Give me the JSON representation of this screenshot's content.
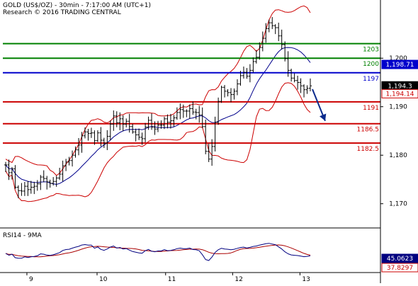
{
  "header": {
    "line1": "GOLD (US$/OZ) - 30min - 7:17:00 AM (UTC+1)",
    "line2": "Research © 2016 TRADING CENTRAL"
  },
  "rsi_label": "RSI14 - 9MA",
  "colors": {
    "candle": "#000000",
    "bollinger": "#cc0000",
    "moving_average": "#00008b",
    "support": "#cc0000",
    "resistance": "#008000",
    "pivot": "#0000cc",
    "arrow": "#0a2a8c",
    "rsi": "#000080",
    "rsi_ma": "#aa0000"
  },
  "chart_data": [
    {
      "type": "candlestick",
      "title": "GOLD (US$/OZ) - 30min - 7:17:00 AM (UTC+1)",
      "ylim": [
        1165,
        1212
      ],
      "y_ticks": [
        "1,170",
        "1,180",
        "1,190",
        "1,200"
      ],
      "x_ticks": [
        "9",
        "10",
        "11",
        "12",
        "13"
      ],
      "grid": false,
      "levels": [
        {
          "value": 1203,
          "label": "1203",
          "role": "resistance"
        },
        {
          "value": 1200,
          "label": "1200",
          "role": "resistance"
        },
        {
          "value": 1197,
          "label": "1197",
          "role": "pivot"
        },
        {
          "value": 1191,
          "label": "1191",
          "role": "support"
        },
        {
          "value": 1186.5,
          "label": "1186.5",
          "role": "support"
        },
        {
          "value": 1182.5,
          "label": "1182.5",
          "role": "support"
        }
      ],
      "price_tags": [
        {
          "value": 1198.71,
          "label": "1,198.71",
          "style": "blue"
        },
        {
          "value": 1194.3,
          "label": "1,194.3",
          "style": "black"
        },
        {
          "value": 1194.14,
          "label": "1,194.14",
          "style": "red"
        }
      ],
      "forecast_arrow": {
        "from": 1193.6,
        "to": 1186.5
      },
      "close": [
        1178.0,
        1176.4,
        1177.2,
        1173.4,
        1172.7,
        1172.6,
        1173.6,
        1172.9,
        1173.4,
        1173.6,
        1174.1,
        1175.5,
        1175.2,
        1174.5,
        1174.2,
        1174.6,
        1175.3,
        1176.1,
        1177.8,
        1178.6,
        1178.9,
        1180.0,
        1181.1,
        1182.1,
        1184.0,
        1184.8,
        1184.5,
        1184.6,
        1183.0,
        1184.6,
        1183.1,
        1182.5,
        1183.9,
        1186.4,
        1188.1,
        1186.7,
        1187.5,
        1186.4,
        1187.0,
        1185.9,
        1184.8,
        1184.2,
        1183.7,
        1183.4,
        1185.8,
        1187.2,
        1185.8,
        1185.4,
        1186.2,
        1186.2,
        1187.5,
        1186.8,
        1187.1,
        1187.7,
        1188.8,
        1189.4,
        1189.1,
        1189.1,
        1189.6,
        1188.9,
        1188.8,
        1188.3,
        1185.9,
        1180.8,
        1179.2,
        1181.8,
        1186.8,
        1191.1,
        1194.0,
        1193.2,
        1192.9,
        1192.5,
        1193.2,
        1194.7,
        1196.4,
        1197.1,
        1196.3,
        1197.5,
        1199.3,
        1200.2,
        1202.2,
        1204.1,
        1206.1,
        1207.3,
        1206.7,
        1206.3,
        1204.6,
        1202.8,
        1199.9,
        1197.5,
        1195.9,
        1195.4,
        1195.0,
        1194.3,
        1193.5,
        1193.8,
        1194.3
      ],
      "rsi_data": {
        "label": "RSI14 - 9MA",
        "tags": [
          {
            "value": 45.0623,
            "label": "45.0623",
            "style": "blue"
          },
          {
            "value": 37.8297,
            "label": "37.8297",
            "style": "red"
          }
        ]
      }
    }
  ]
}
